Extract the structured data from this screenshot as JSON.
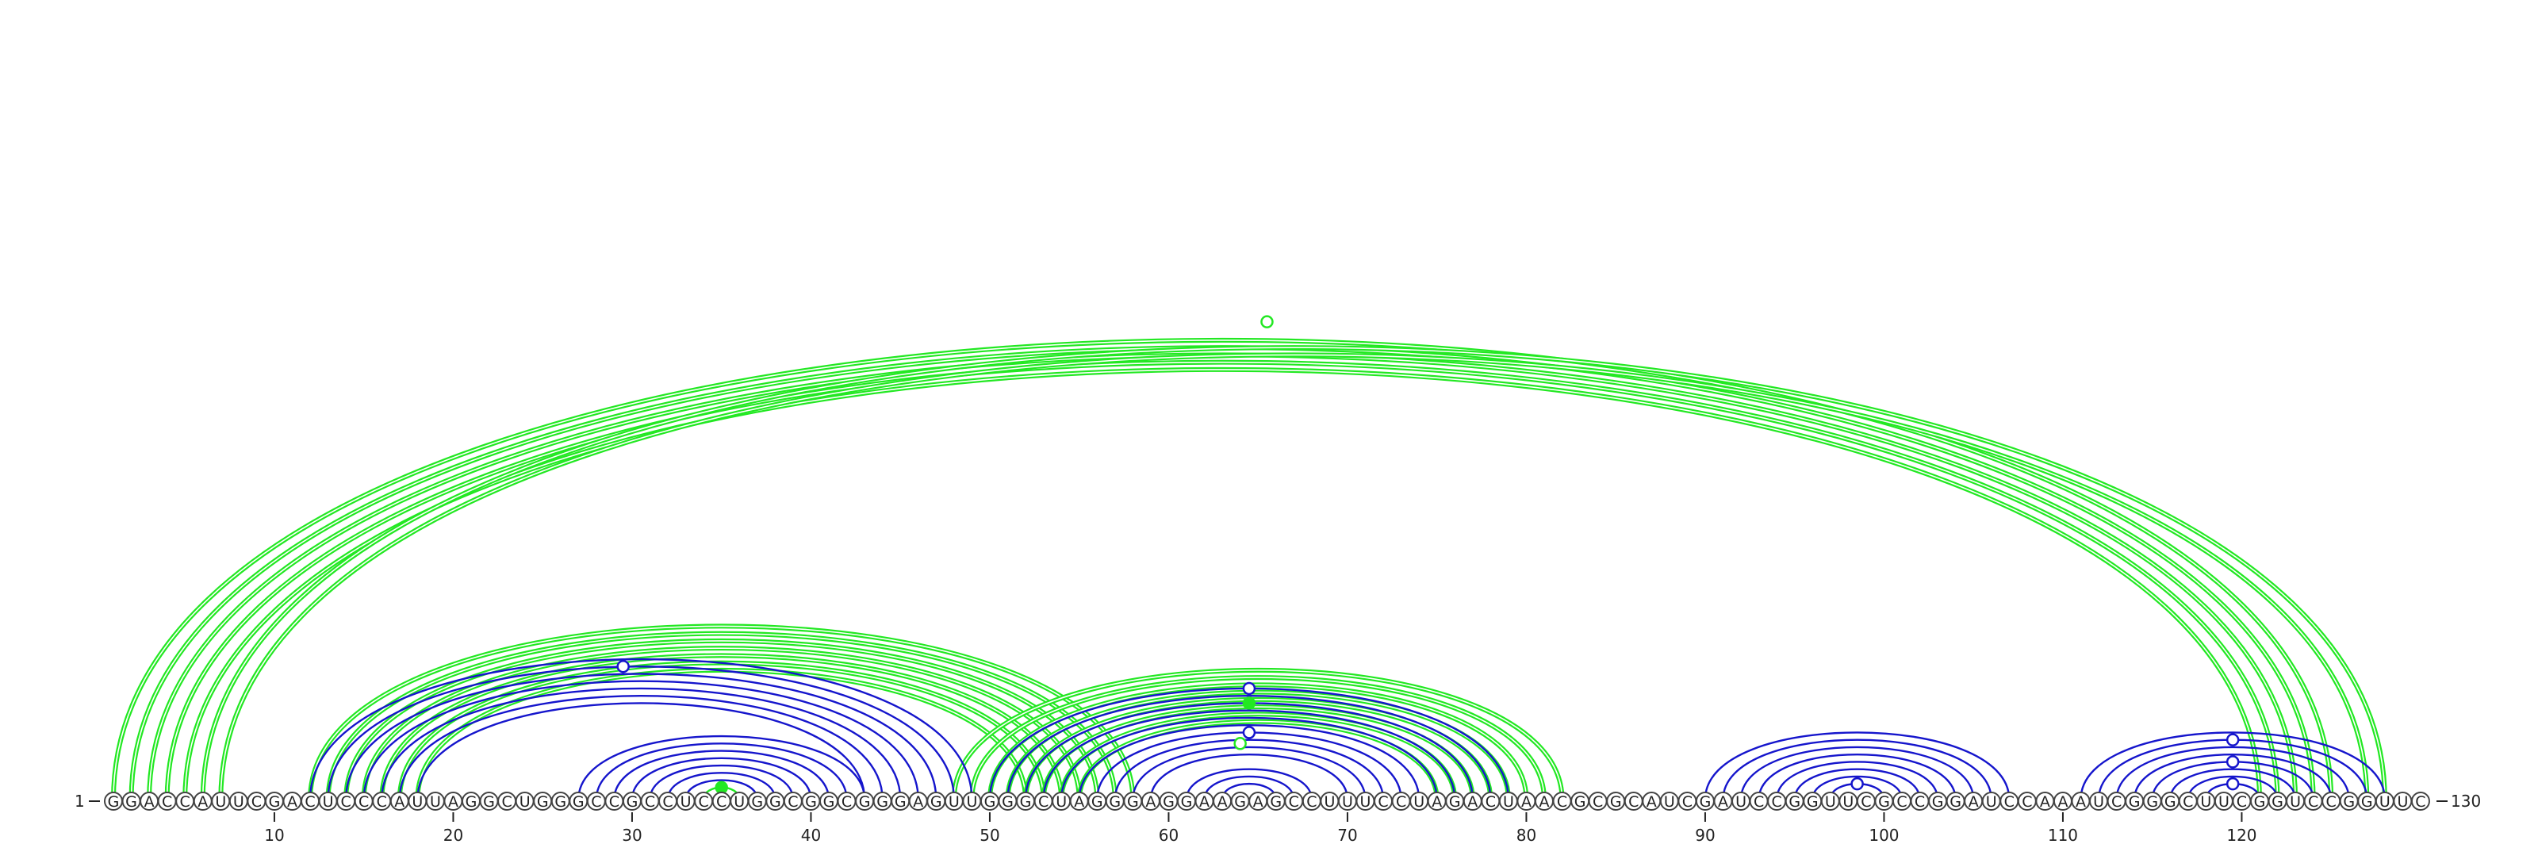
{
  "sequence": "GGACCAUUCGACUCCCAUUAGGCUGGGCCGCCUCCUGGCGGCGGGAGUUGGGCUAGGGAGGAAGAGCCUUUCCUAGACUAACGCGCAUCGAUCCGGUUCGCCGGAUCCAAAUCGGGCUUCGGUCCGGUUC",
  "start_label": "1",
  "end_label": "130",
  "ticks": [
    "10",
    "20",
    "30",
    "40",
    "50",
    "60",
    "70",
    "80",
    "90",
    "100",
    "110",
    "120"
  ],
  "colors": {
    "blue": "#1515cc",
    "green": "#22e822",
    "outline": "#444444"
  },
  "arc_groups": [
    {
      "color": "green",
      "style": "double",
      "pairs": [
        [
          1,
          125
        ],
        [
          2,
          124
        ],
        [
          3,
          123
        ],
        [
          4,
          122
        ],
        [
          5,
          121
        ],
        [
          6,
          128
        ],
        [
          7,
          127
        ]
      ]
    },
    {
      "color": "green",
      "style": "double",
      "pairs": [
        [
          12,
          58
        ],
        [
          13,
          57
        ],
        [
          14,
          56
        ],
        [
          15,
          55
        ],
        [
          16,
          54
        ],
        [
          17,
          53
        ],
        [
          18,
          52
        ]
      ]
    },
    {
      "color": "green",
      "style": "double",
      "pairs": [
        [
          48,
          82
        ],
        [
          49,
          81
        ],
        [
          50,
          80
        ],
        [
          51,
          79
        ],
        [
          52,
          78
        ],
        [
          53,
          77
        ],
        [
          54,
          76
        ],
        [
          55,
          75
        ]
      ]
    },
    {
      "color": "green",
      "style": "single",
      "pairs": [
        [
          34,
          36
        ]
      ]
    },
    {
      "color": "blue",
      "style": "single",
      "pairs": [
        [
          12,
          49
        ],
        [
          13,
          48
        ],
        [
          14,
          47
        ],
        [
          15,
          46
        ],
        [
          16,
          45
        ],
        [
          17,
          44
        ],
        [
          18,
          43
        ]
      ]
    },
    {
      "color": "blue",
      "style": "single",
      "pairs": [
        [
          27,
          43
        ],
        [
          28,
          42
        ],
        [
          29,
          41
        ],
        [
          30,
          40
        ],
        [
          31,
          39
        ],
        [
          32,
          38
        ],
        [
          33,
          37
        ]
      ]
    },
    {
      "color": "blue",
      "style": "single",
      "pairs": [
        [
          50,
          79
        ],
        [
          51,
          78
        ],
        [
          52,
          77
        ],
        [
          53,
          76
        ],
        [
          54,
          75
        ],
        [
          55,
          74
        ],
        [
          56,
          73
        ],
        [
          57,
          72
        ],
        [
          58,
          71
        ],
        [
          59,
          70
        ]
      ]
    },
    {
      "color": "blue",
      "style": "single",
      "pairs": [
        [
          61,
          68
        ],
        [
          62,
          67
        ],
        [
          63,
          66
        ]
      ]
    },
    {
      "color": "blue",
      "style": "single",
      "pairs": [
        [
          90,
          107
        ],
        [
          91,
          106
        ],
        [
          92,
          105
        ],
        [
          93,
          104
        ],
        [
          94,
          103
        ],
        [
          95,
          102
        ],
        [
          96,
          101
        ],
        [
          97,
          100
        ]
      ]
    },
    {
      "color": "blue",
      "style": "single",
      "pairs": [
        [
          111,
          128
        ],
        [
          112,
          127
        ],
        [
          113,
          126
        ],
        [
          114,
          125
        ],
        [
          115,
          124
        ],
        [
          116,
          123
        ],
        [
          117,
          122
        ],
        [
          118,
          121
        ]
      ]
    }
  ],
  "markers": [
    {
      "color": "green",
      "filled": false,
      "at": 65.5,
      "arc": [
        1,
        130
      ]
    },
    {
      "color": "blue",
      "filled": false,
      "at": 29.5,
      "arc": [
        12,
        47
      ]
    },
    {
      "color": "blue",
      "filled": false,
      "at": 64.5,
      "arc": [
        50,
        79
      ]
    },
    {
      "color": "green",
      "filled": true,
      "at": 64.5,
      "arc": [
        52,
        77
      ]
    },
    {
      "color": "blue",
      "filled": false,
      "at": 64.5,
      "arc": [
        56,
        73
      ]
    },
    {
      "color": "green",
      "filled": false,
      "at": 64.0,
      "arc": [
        57,
        71
      ]
    },
    {
      "color": "green",
      "filled": true,
      "at": 35.0,
      "arc": [
        34,
        36
      ]
    },
    {
      "color": "blue",
      "filled": false,
      "at": 98.5,
      "arc": [
        97,
        100
      ]
    },
    {
      "color": "blue",
      "filled": false,
      "at": 119.5,
      "arc": [
        112,
        127
      ]
    },
    {
      "color": "blue",
      "filled": false,
      "at": 119.5,
      "arc": [
        115,
        124
      ]
    },
    {
      "color": "blue",
      "filled": false,
      "at": 119.5,
      "arc": [
        118,
        121
      ]
    }
  ]
}
